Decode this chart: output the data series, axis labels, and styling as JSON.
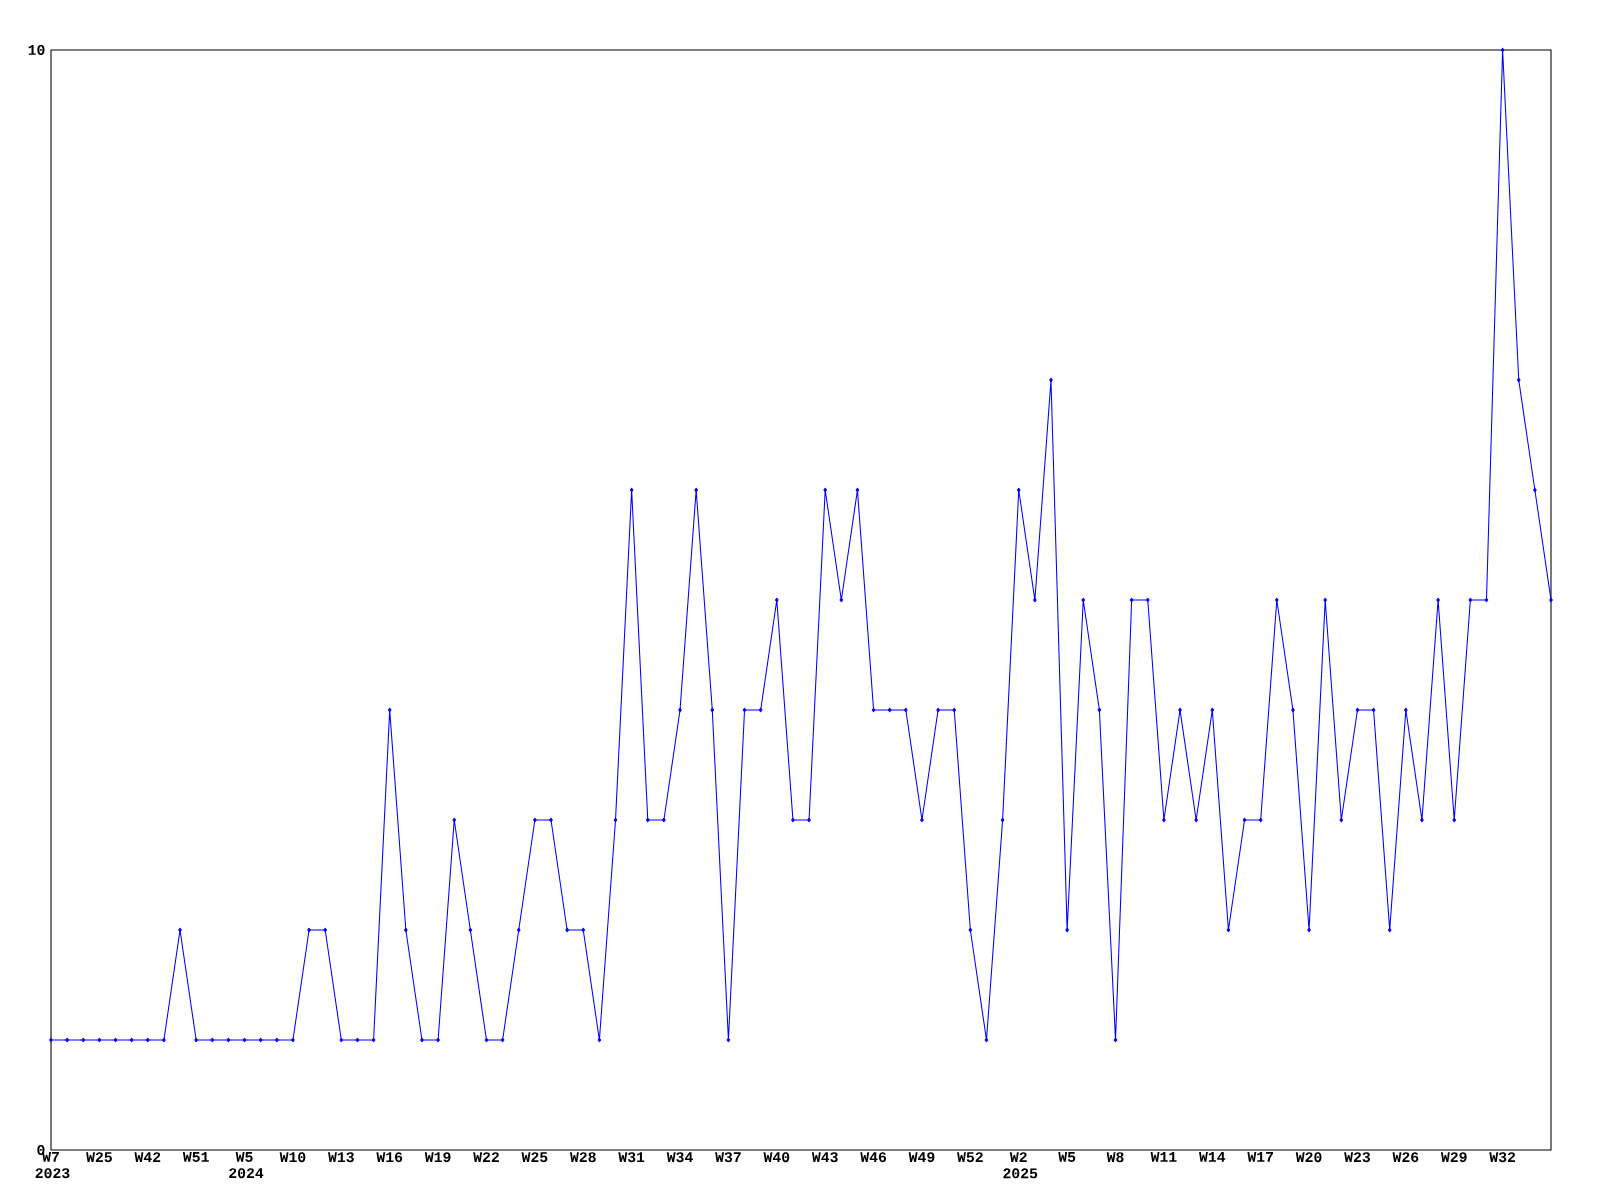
{
  "chart_data": {
    "type": "line",
    "categories": [
      "W7 2023",
      null,
      null,
      "W25",
      null,
      null,
      "W42",
      null,
      null,
      "W51",
      null,
      null,
      "W5 2024",
      null,
      null,
      "W10",
      null,
      null,
      "W13",
      null,
      null,
      "W16",
      null,
      null,
      "W19",
      null,
      null,
      "W22",
      null,
      null,
      "W25",
      null,
      null,
      "W28",
      null,
      null,
      "W31",
      null,
      null,
      "W34",
      null,
      null,
      "W37",
      null,
      null,
      "W40",
      null,
      null,
      "W43",
      null,
      null,
      "W46",
      null,
      null,
      "W49",
      null,
      null,
      "W52",
      null,
      null,
      "W2 2025",
      null,
      null,
      "W5",
      null,
      null,
      "W8",
      null,
      null,
      "W11",
      null,
      null,
      "W14",
      null,
      null,
      "W17",
      null,
      null,
      "W20",
      null,
      null,
      "W23",
      null,
      null,
      "W26",
      null,
      null,
      "W29",
      null,
      null,
      "W32",
      null,
      null,
      null
    ],
    "values": [
      1,
      1,
      1,
      1,
      1,
      1,
      1,
      1,
      2,
      1,
      1,
      1,
      1,
      1,
      1,
      1,
      2,
      2,
      1,
      1,
      1,
      4,
      2,
      1,
      1,
      3,
      2,
      1,
      1,
      2,
      3,
      3,
      2,
      2,
      1,
      3,
      6,
      3,
      3,
      4,
      6,
      4,
      1,
      4,
      4,
      5,
      3,
      3,
      6,
      5,
      6,
      4,
      4,
      4,
      3,
      4,
      4,
      2,
      1,
      3,
      6,
      5,
      7,
      2,
      5,
      4,
      1,
      5,
      5,
      3,
      4,
      3,
      4,
      2,
      3,
      3,
      5,
      4,
      2,
      5,
      3,
      4,
      4,
      2,
      4,
      3,
      5,
      3,
      5,
      5,
      10,
      7,
      6,
      5
    ],
    "color": "#0000ff",
    "ylim": [
      0,
      10
    ],
    "yticks": [
      0,
      10
    ],
    "marker": "diamond"
  }
}
